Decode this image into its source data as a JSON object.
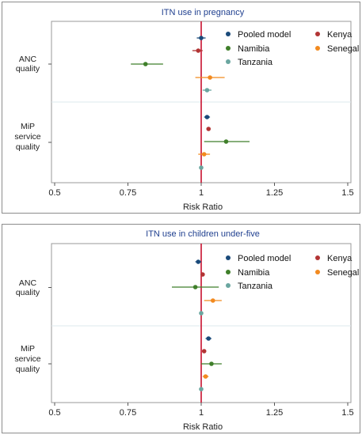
{
  "colors": {
    "Pooled model": "#1a4a7a",
    "Kenya": "#b23434",
    "Namibia": "#3f7f2a",
    "Senegal": "#f28a1f",
    "Tanzania": "#6aa6a0",
    "ref_line": "#c8102e",
    "title": "#1f3f8f"
  },
  "chart_data": [
    {
      "type": "forest",
      "title": "ITN use in pregnancy",
      "xlabel": "Risk Ratio",
      "xticks": [
        "0.5",
        "0.75",
        "1",
        "1.25",
        "1.5"
      ],
      "xlim": [
        0.5,
        1.5
      ],
      "reference_line": 1,
      "legend": [
        "Pooled model",
        "Kenya",
        "Namibia",
        "Senegal",
        "Tanzania"
      ],
      "groups": [
        {
          "label": [
            "ANC",
            "quality"
          ],
          "rows": [
            {
              "series": "Pooled model",
              "est": 1.0,
              "lo": 0.985,
              "hi": 1.015
            },
            {
              "series": "Kenya",
              "est": 0.99,
              "lo": 0.97,
              "hi": 1.005
            },
            {
              "series": "Namibia",
              "est": 0.81,
              "lo": 0.76,
              "hi": 0.87
            },
            {
              "series": "Senegal",
              "est": 1.03,
              "lo": 0.98,
              "hi": 1.08
            },
            {
              "series": "Tanzania",
              "est": 1.02,
              "lo": 1.005,
              "hi": 1.035
            }
          ]
        },
        {
          "label": [
            "MiP",
            "service",
            "quality"
          ],
          "rows": [
            {
              "series": "Pooled model",
              "est": 1.02,
              "lo": 1.01,
              "hi": 1.03
            },
            {
              "series": "Kenya",
              "est": 1.025,
              "lo": 1.02,
              "hi": 1.03
            },
            {
              "series": "Namibia",
              "est": 1.085,
              "lo": 1.01,
              "hi": 1.165
            },
            {
              "series": "Senegal",
              "est": 1.01,
              "lo": 0.99,
              "hi": 1.03
            },
            {
              "series": "Tanzania",
              "est": 1.0,
              "lo": 0.995,
              "hi": 1.005
            }
          ]
        }
      ]
    },
    {
      "type": "forest",
      "title": "ITN use in children under-five",
      "xlabel": "Risk Ratio",
      "xticks": [
        "0.5",
        "0.75",
        "1",
        "1.25",
        "1.5"
      ],
      "xlim": [
        0.5,
        1.5
      ],
      "reference_line": 1,
      "legend": [
        "Pooled model",
        "Kenya",
        "Namibia",
        "Senegal",
        "Tanzania"
      ],
      "groups": [
        {
          "label": [
            "ANC",
            "quality"
          ],
          "rows": [
            {
              "series": "Pooled model",
              "est": 0.99,
              "lo": 0.98,
              "hi": 1.0
            },
            {
              "series": "Kenya",
              "est": 1.005,
              "lo": 1.0,
              "hi": 1.01
            },
            {
              "series": "Namibia",
              "est": 0.98,
              "lo": 0.9,
              "hi": 1.06
            },
            {
              "series": "Senegal",
              "est": 1.04,
              "lo": 1.01,
              "hi": 1.07
            },
            {
              "series": "Tanzania",
              "est": 1.0,
              "lo": 0.995,
              "hi": 1.005
            }
          ]
        },
        {
          "label": [
            "MiP",
            "service",
            "quality"
          ],
          "rows": [
            {
              "series": "Pooled model",
              "est": 1.025,
              "lo": 1.015,
              "hi": 1.035
            },
            {
              "series": "Kenya",
              "est": 1.01,
              "lo": 1.005,
              "hi": 1.015
            },
            {
              "series": "Namibia",
              "est": 1.035,
              "lo": 1.0,
              "hi": 1.07
            },
            {
              "series": "Senegal",
              "est": 1.015,
              "lo": 1.005,
              "hi": 1.025
            },
            {
              "series": "Tanzania",
              "est": 1.0,
              "lo": 0.995,
              "hi": 1.005
            }
          ]
        }
      ]
    }
  ]
}
